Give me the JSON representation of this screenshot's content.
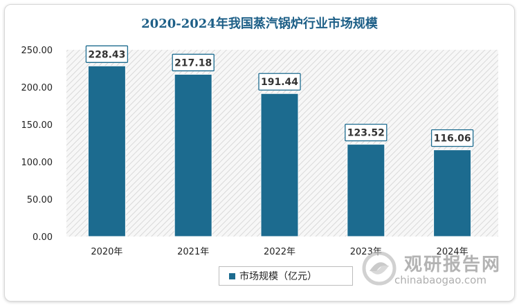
{
  "chart_data": {
    "type": "bar",
    "title": "2020-2024年我国蒸汽锅炉行业市场规模",
    "categories": [
      "2020年",
      "2021年",
      "2022年",
      "2023年",
      "2024年"
    ],
    "series": [
      {
        "name": "市场规模（亿元）",
        "values": [
          228.43,
          217.18,
          191.44,
          123.52,
          116.06
        ]
      }
    ],
    "value_labels": [
      "228.43",
      "217.18",
      "191.44",
      "123.52",
      "116.06"
    ],
    "yticks": [
      "0.00",
      "50.00",
      "100.00",
      "150.00",
      "200.00",
      "250.00"
    ],
    "ylim": [
      0,
      250
    ],
    "bar_color": "#1c6b8f",
    "legend_position": "bottom",
    "grid": false
  },
  "watermark": {
    "brand_cn": "观研报告网",
    "brand_en": "chinabaogao.com",
    "logo_icon": "swirl-logo-icon"
  }
}
